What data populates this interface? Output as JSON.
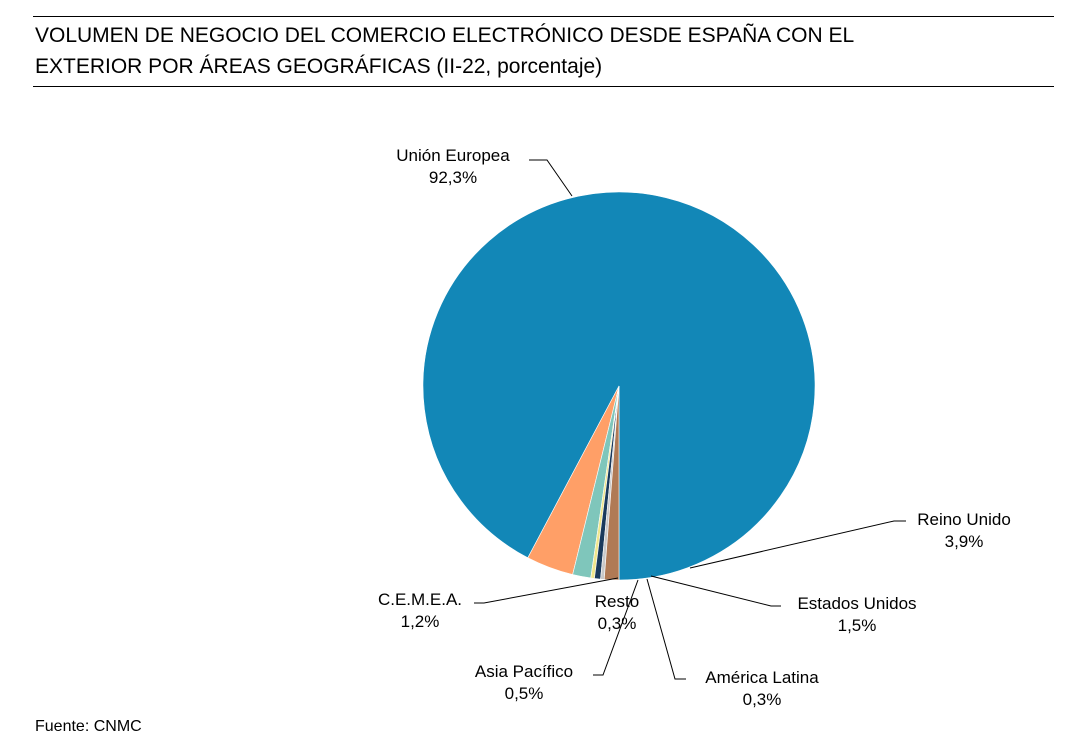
{
  "chart_data": {
    "type": "pie",
    "title_lines": [
      "VOLUMEN DE NEGOCIO DEL COMERCIO ELECTRÓNICO DESDE ESPAÑA CON EL",
      "EXTERIOR POR ÁREAS GEOGRÁFICAS (II-22, porcentaje)"
    ],
    "slices": [
      {
        "label": "Unión Europea",
        "value": 92.3,
        "value_label": "92,3%",
        "color": "#1287b7"
      },
      {
        "label": "Reino Unido",
        "value": 3.9,
        "value_label": "3,9%",
        "color": "#ff9f67"
      },
      {
        "label": "Estados Unidos",
        "value": 1.5,
        "value_label": "1,5%",
        "color": "#7fc6bb"
      },
      {
        "label": "América Latina",
        "value": 0.3,
        "value_label": "0,3%",
        "color": "#f0e68c"
      },
      {
        "label": "Asia Pacífico",
        "value": 0.5,
        "value_label": "0,5%",
        "color": "#1a3a5c"
      },
      {
        "label": "Resto",
        "value": 0.3,
        "value_label": "0,3%",
        "color": "#c9c9c9"
      },
      {
        "label": "C.E.M.E.A.",
        "value": 1.2,
        "value_label": "1,2%",
        "color": "#b07a55"
      }
    ],
    "legend": "none"
  },
  "source": "Fuente: CNMC"
}
